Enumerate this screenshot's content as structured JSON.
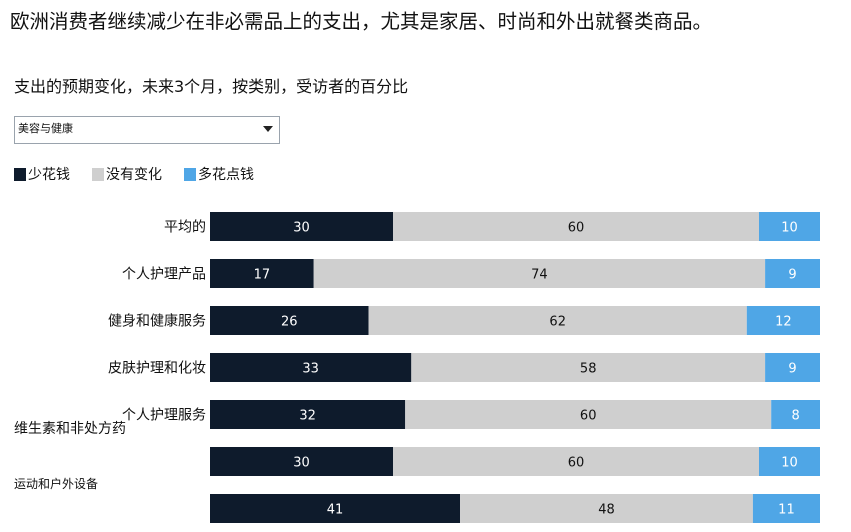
{
  "headline": "欧洲消费者继续减少在非必需品上的支出，尤其是家居、时尚和外出就餐类商品。",
  "subtitle": "支出的预期变化，未来3个月，按类别，受访者的百分比",
  "filter": {
    "selected": "美容与健康",
    "icon": "chevron-down-icon"
  },
  "colors": {
    "less": "#0e1b2c",
    "same": "#cfcfcf",
    "more": "#4fa6e6"
  },
  "chart_data": {
    "type": "bar",
    "orientation": "horizontal",
    "stacked": true,
    "normalized_percent": true,
    "categories": [
      "平均的",
      "个人护理产品",
      "健身和健康服务",
      "皮肤护理和化妆",
      "个人护理服务",
      "维生素和非处方药",
      "运动和户外设备"
    ],
    "series": [
      {
        "name": "少花钱",
        "values": [
          30,
          17,
          26,
          33,
          32,
          30,
          41
        ]
      },
      {
        "name": "没有变化",
        "values": [
          60,
          74,
          62,
          58,
          60,
          60,
          48
        ]
      },
      {
        "name": "多花点钱",
        "values": [
          10,
          9,
          12,
          9,
          8,
          10,
          11
        ]
      }
    ],
    "legend": "top-left",
    "xlim": [
      0,
      100
    ],
    "grid": false
  }
}
